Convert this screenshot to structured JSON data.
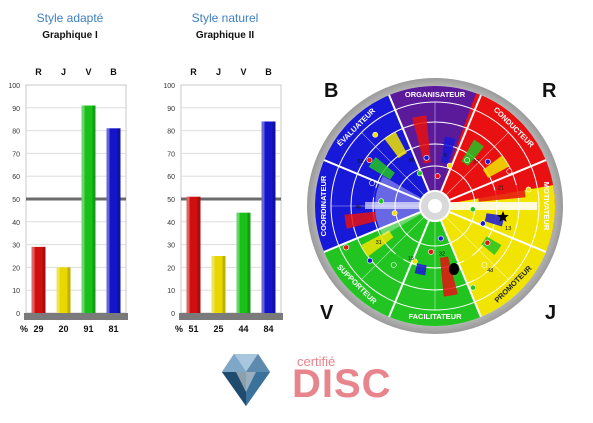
{
  "charts": [
    {
      "subtitle": "Style adapté",
      "title": "Graphique I",
      "chart_data": {
        "type": "bar",
        "categories": [
          "R",
          "J",
          "V",
          "B"
        ],
        "values": [
          29,
          20,
          91,
          81
        ],
        "colors": [
          "#d01010",
          "#e8d800",
          "#18c018",
          "#1414c8"
        ],
        "ylim": [
          0,
          100
        ],
        "yticks": [
          0,
          10,
          20,
          30,
          40,
          50,
          60,
          70,
          80,
          90,
          100
        ],
        "reference_line": 50,
        "value_row_label": "%"
      }
    },
    {
      "subtitle": "Style naturel",
      "title": "Graphique II",
      "chart_data": {
        "type": "bar",
        "categories": [
          "R",
          "J",
          "V",
          "B"
        ],
        "values": [
          51,
          25,
          44,
          84
        ],
        "colors": [
          "#d01010",
          "#e8d800",
          "#18c018",
          "#1414c8"
        ],
        "ylim": [
          0,
          100
        ],
        "yticks": [
          0,
          10,
          20,
          30,
          40,
          50,
          60,
          70,
          80,
          90,
          100
        ],
        "reference_line": 50,
        "value_row_label": "%"
      }
    }
  ],
  "wheel": {
    "corners": {
      "top_left": "B",
      "top_right": "R",
      "bottom_left": "V",
      "bottom_right": "J"
    },
    "segments": [
      "ORGANISATEUR",
      "CONDUCTEUR",
      "MOTIVATEUR",
      "PROMOTEUR",
      "FACILITATEUR",
      "SUPPORTEUR",
      "COORDINATEUR",
      "ÉVALUATEUR"
    ],
    "colors": {
      "red": "#e81010",
      "yellow": "#f0e400",
      "green": "#22c422",
      "blue": "#1818d8",
      "purple": "#5a1a9a"
    },
    "numbers": [
      "5",
      "37",
      "21",
      "13",
      "48",
      "32",
      "15",
      "31",
      "46",
      "52",
      "56"
    ]
  },
  "logo": {
    "certified_text": "certifié",
    "brand_text": "DISC",
    "brand_color": "#e8848c"
  }
}
